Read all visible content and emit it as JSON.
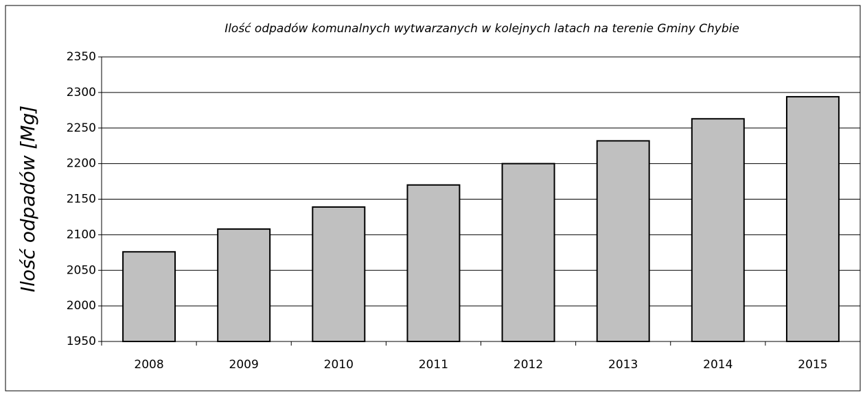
{
  "chart_data": {
    "type": "bar",
    "title": "Ilość odpadów komunalnych wytwarzanych w kolejnych latach na terenie Gminy Chybie",
    "y_label": "Ilość odpadów [Mg]",
    "categories": [
      "2008",
      "2009",
      "2010",
      "2011",
      "2012",
      "2013",
      "2014",
      "2015"
    ],
    "values": [
      2076,
      2108,
      2139,
      2170,
      2200,
      2232,
      2263,
      2294
    ],
    "color": "#c0c0c0",
    "ylim": [
      1950,
      2350
    ],
    "yticks": [
      1950,
      2000,
      2050,
      2100,
      2150,
      2200,
      2250,
      2300,
      2350
    ],
    "grid": true
  }
}
